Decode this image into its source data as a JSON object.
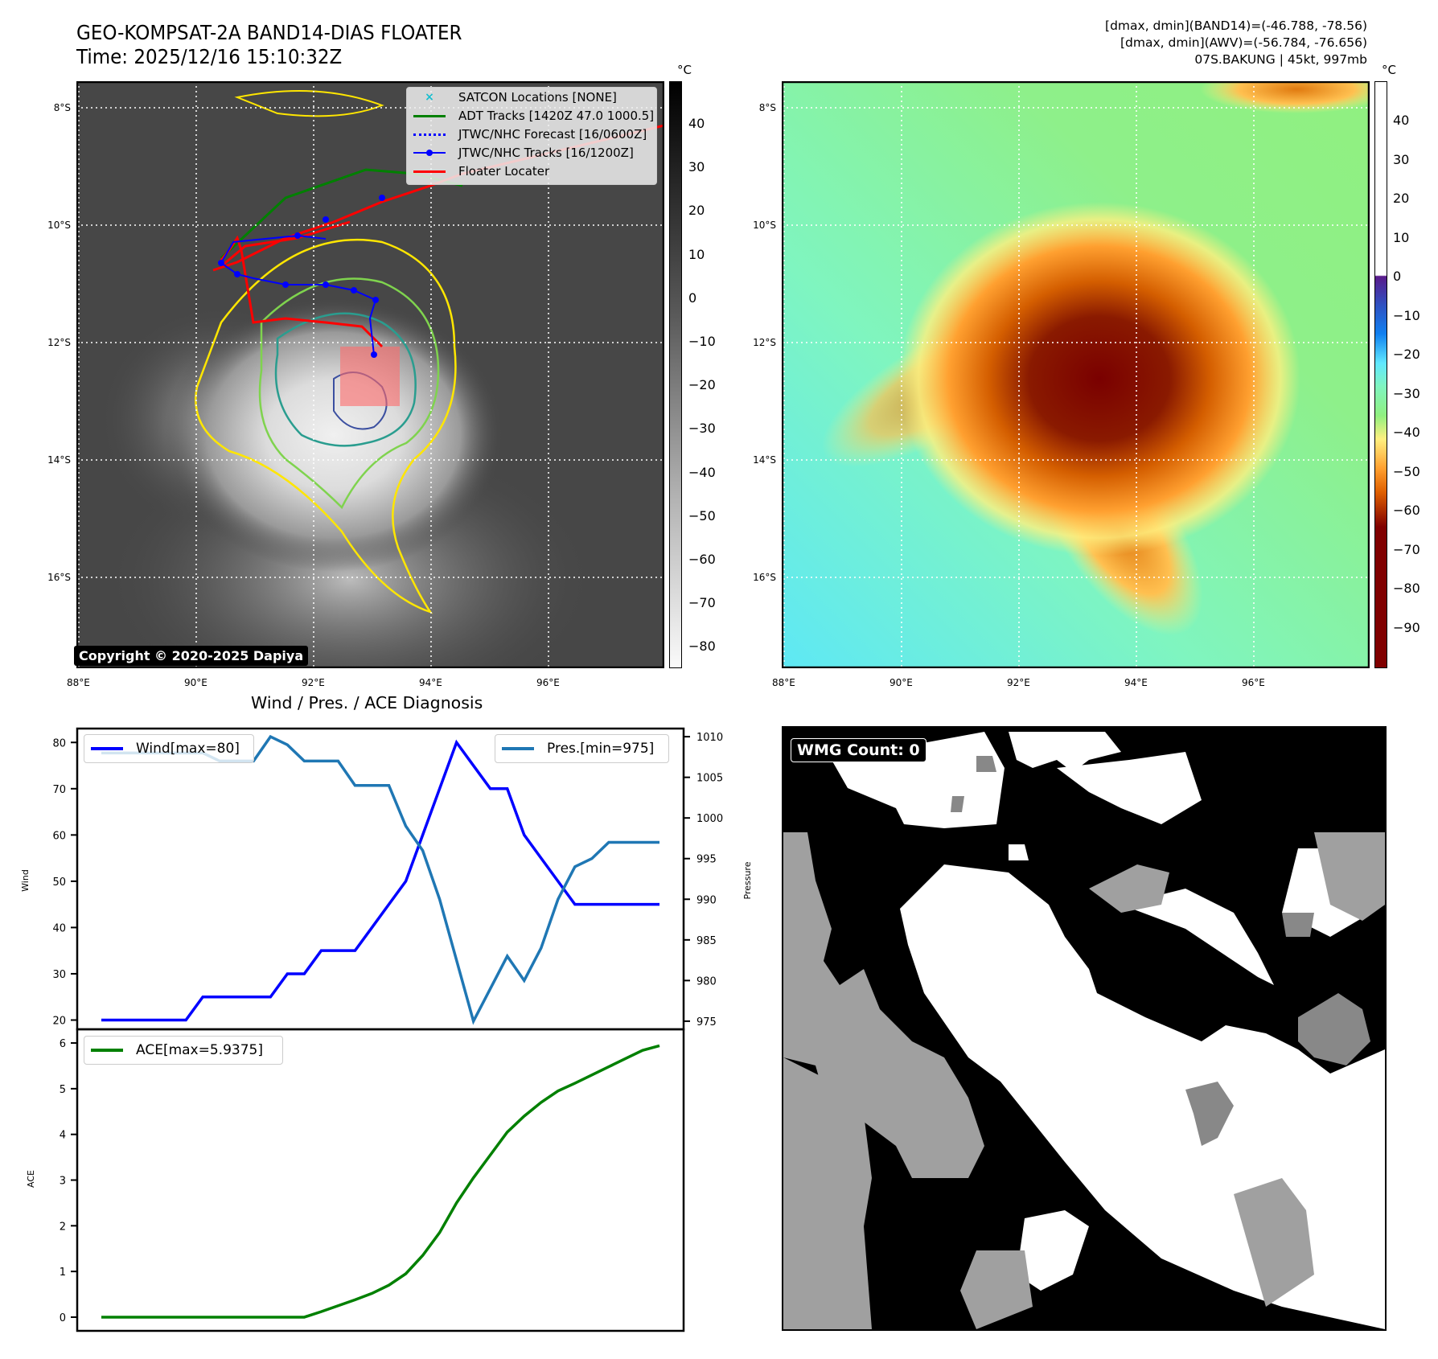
{
  "header": {
    "title_line1": "GEO-KOMPSAT-2A BAND14-DIAS FLOATER",
    "title_line2": "Time: 2025/12/16 15:10:32Z",
    "info_line1": "[dmax, dmin](BAND14)=(-46.788, -78.56)",
    "info_line2": "[dmax, dmin](AWV)=(-56.784, -76.656)",
    "info_line3": "07S.BAKUNG | 45kt, 997mb"
  },
  "map_left": {
    "unit": "°C",
    "lat_ticks": [
      "8°S",
      "10°S",
      "12°S",
      "14°S",
      "16°S"
    ],
    "lon_ticks": [
      "88°E",
      "90°E",
      "92°E",
      "94°E",
      "96°E"
    ],
    "colorbar_ticks": [
      "40",
      "30",
      "20",
      "10",
      "0",
      "−10",
      "−20",
      "−30",
      "−40",
      "−50",
      "−60",
      "−70",
      "−80"
    ],
    "copyright": "Copyright © 2020-2025 Dapiya",
    "legend": [
      {
        "label": "SATCON Locations [NONE]",
        "color": "#17becf",
        "style": "x-marker"
      },
      {
        "label": "ADT Tracks [1420Z 47.0 1000.5]",
        "color": "#008000",
        "style": "solid"
      },
      {
        "label": "JTWC/NHC Forecast [16/0600Z]",
        "color": "#0000ff",
        "style": "dotted"
      },
      {
        "label": "JTWC/NHC Tracks [16/1200Z]",
        "color": "#0000ff",
        "style": "dot-line"
      },
      {
        "label": "Floater Locater",
        "color": "#ff0000",
        "style": "solid"
      }
    ]
  },
  "map_right": {
    "unit": "°C",
    "lat_ticks": [
      "8°S",
      "10°S",
      "12°S",
      "14°S",
      "16°S"
    ],
    "lon_ticks": [
      "88°E",
      "90°E",
      "92°E",
      "94°E",
      "96°E"
    ],
    "colorbar_ticks": [
      "40",
      "30",
      "20",
      "10",
      "0",
      "−10",
      "−20",
      "−30",
      "−40",
      "−50",
      "−60",
      "−70",
      "−80",
      "−90"
    ]
  },
  "wmg": {
    "label": "WMG Count: 0"
  },
  "chart_data": [
    {
      "type": "line",
      "title": "Wind / Pres. / ACE Diagnosis",
      "xlabel": "",
      "ylabel": "Wind",
      "y2label": "Pressure",
      "ylim": [
        18,
        83
      ],
      "y2lim": [
        974,
        1011
      ],
      "yticks": [
        "20",
        "30",
        "40",
        "50",
        "60",
        "70",
        "80"
      ],
      "y2ticks": [
        "975",
        "980",
        "985",
        "990",
        "995",
        "1000",
        "1005",
        "1010"
      ],
      "x": [
        0,
        1,
        2,
        3,
        4,
        5,
        6,
        7,
        8,
        9,
        10,
        11,
        12,
        13,
        14,
        15,
        16,
        17,
        18,
        19,
        20,
        21,
        22,
        23,
        24,
        25,
        26,
        27,
        28,
        29,
        30,
        31,
        32,
        33
      ],
      "series": [
        {
          "name": "Wind[max=80]",
          "color": "#0000ff",
          "axis": "left",
          "values": [
            20,
            20,
            20,
            20,
            20,
            20,
            25,
            25,
            25,
            25,
            25,
            30,
            30,
            35,
            35,
            35,
            40,
            45,
            50,
            60,
            70,
            80,
            75,
            70,
            70,
            60,
            55,
            50,
            45,
            45,
            45,
            45,
            45,
            45
          ]
        },
        {
          "name": "Pres.[min=975]",
          "color": "#1f77b4",
          "axis": "right",
          "values": [
            1008,
            1008,
            1008,
            1008,
            1008,
            1008,
            1008,
            1007,
            1007,
            1007,
            1010,
            1009,
            1007,
            1007,
            1007,
            1004,
            1004,
            1004,
            999,
            996,
            990,
            982.5,
            975,
            979,
            983,
            980,
            984,
            990,
            994,
            995,
            997,
            997,
            997,
            997
          ]
        }
      ]
    },
    {
      "type": "line",
      "xlabel": "",
      "ylabel": "ACE",
      "ylim": [
        -0.3,
        6.3
      ],
      "yticks": [
        "0",
        "1",
        "2",
        "3",
        "4",
        "5",
        "6"
      ],
      "x": [
        0,
        1,
        2,
        3,
        4,
        5,
        6,
        7,
        8,
        9,
        10,
        11,
        12,
        13,
        14,
        15,
        16,
        17,
        18,
        19,
        20,
        21,
        22,
        23,
        24,
        25,
        26,
        27,
        28,
        29,
        30,
        31,
        32,
        33
      ],
      "series": [
        {
          "name": "ACE[max=5.9375]",
          "color": "#008000",
          "values": [
            0,
            0,
            0,
            0,
            0,
            0,
            0,
            0,
            0,
            0,
            0,
            0,
            0,
            0.12,
            0.25,
            0.38,
            0.52,
            0.7,
            0.95,
            1.35,
            1.85,
            2.5,
            3.05,
            3.55,
            4.05,
            4.4,
            4.7,
            4.95,
            5.12,
            5.3,
            5.48,
            5.66,
            5.84,
            5.94
          ]
        }
      ]
    }
  ]
}
